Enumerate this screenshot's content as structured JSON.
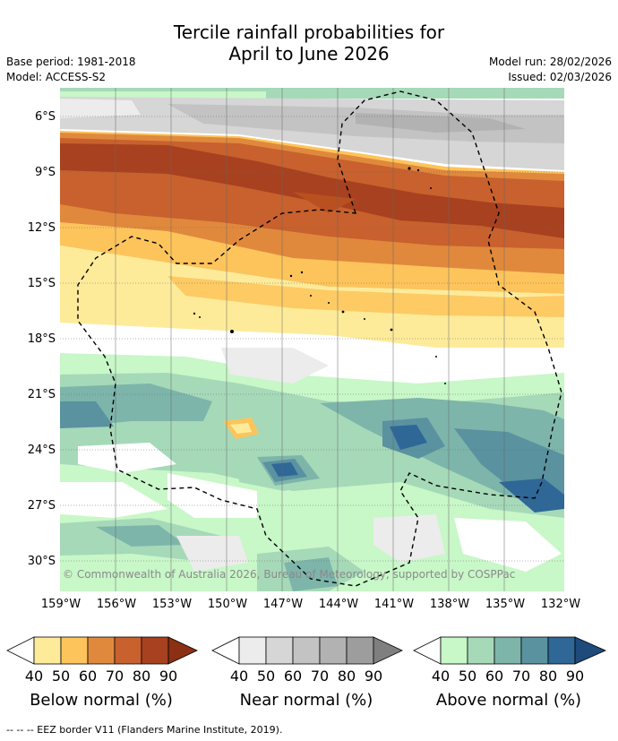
{
  "header": {
    "title_line1": "Tercile rainfall probabilities for",
    "title_line2": "April to June 2026",
    "base_period": "Base period: 1981-2018",
    "model": "Model: ACCESS-S2",
    "model_run": "Model run: 28/02/2026",
    "issued": "Issued: 02/03/2026"
  },
  "map": {
    "y_labels": [
      "6°S",
      "9°S",
      "12°S",
      "15°S",
      "18°S",
      "21°S",
      "24°S",
      "27°S",
      "30°S"
    ],
    "x_labels": [
      "159°W",
      "156°W",
      "153°W",
      "150°W",
      "147°W",
      "144°W",
      "141°W",
      "138°W",
      "135°W",
      "132°W"
    ],
    "copyright": "© Commonwealth of Australia 2026, Bureau of Meteorology, supported by COSPPac"
  },
  "legend": {
    "bars": [
      {
        "title": "Below normal (%)",
        "ticks": [
          "40",
          "50",
          "60",
          "70",
          "80",
          "90"
        ],
        "colors": [
          "#fdeb9a",
          "#fdc45b",
          "#e0893d",
          "#c8612d",
          "#a8411f",
          "#8b2f15"
        ]
      },
      {
        "title": "Near normal (%)",
        "ticks": [
          "40",
          "50",
          "60",
          "70",
          "80",
          "90"
        ],
        "colors": [
          "#ececec",
          "#d6d6d6",
          "#c3c3c3",
          "#b2b2b2",
          "#9d9d9d",
          "#7f7f7f"
        ]
      },
      {
        "title": "Above normal (%)",
        "ticks": [
          "40",
          "50",
          "60",
          "70",
          "80",
          "90"
        ],
        "colors": [
          "#c8f7c8",
          "#a6d9b8",
          "#7db5ab",
          "#5a92a0",
          "#2f6797",
          "#1e4a7c"
        ]
      }
    ]
  },
  "footer": {
    "eez_note": "--  --  -- EEZ border V11 (Flanders Marine Institute, 2019)."
  }
}
